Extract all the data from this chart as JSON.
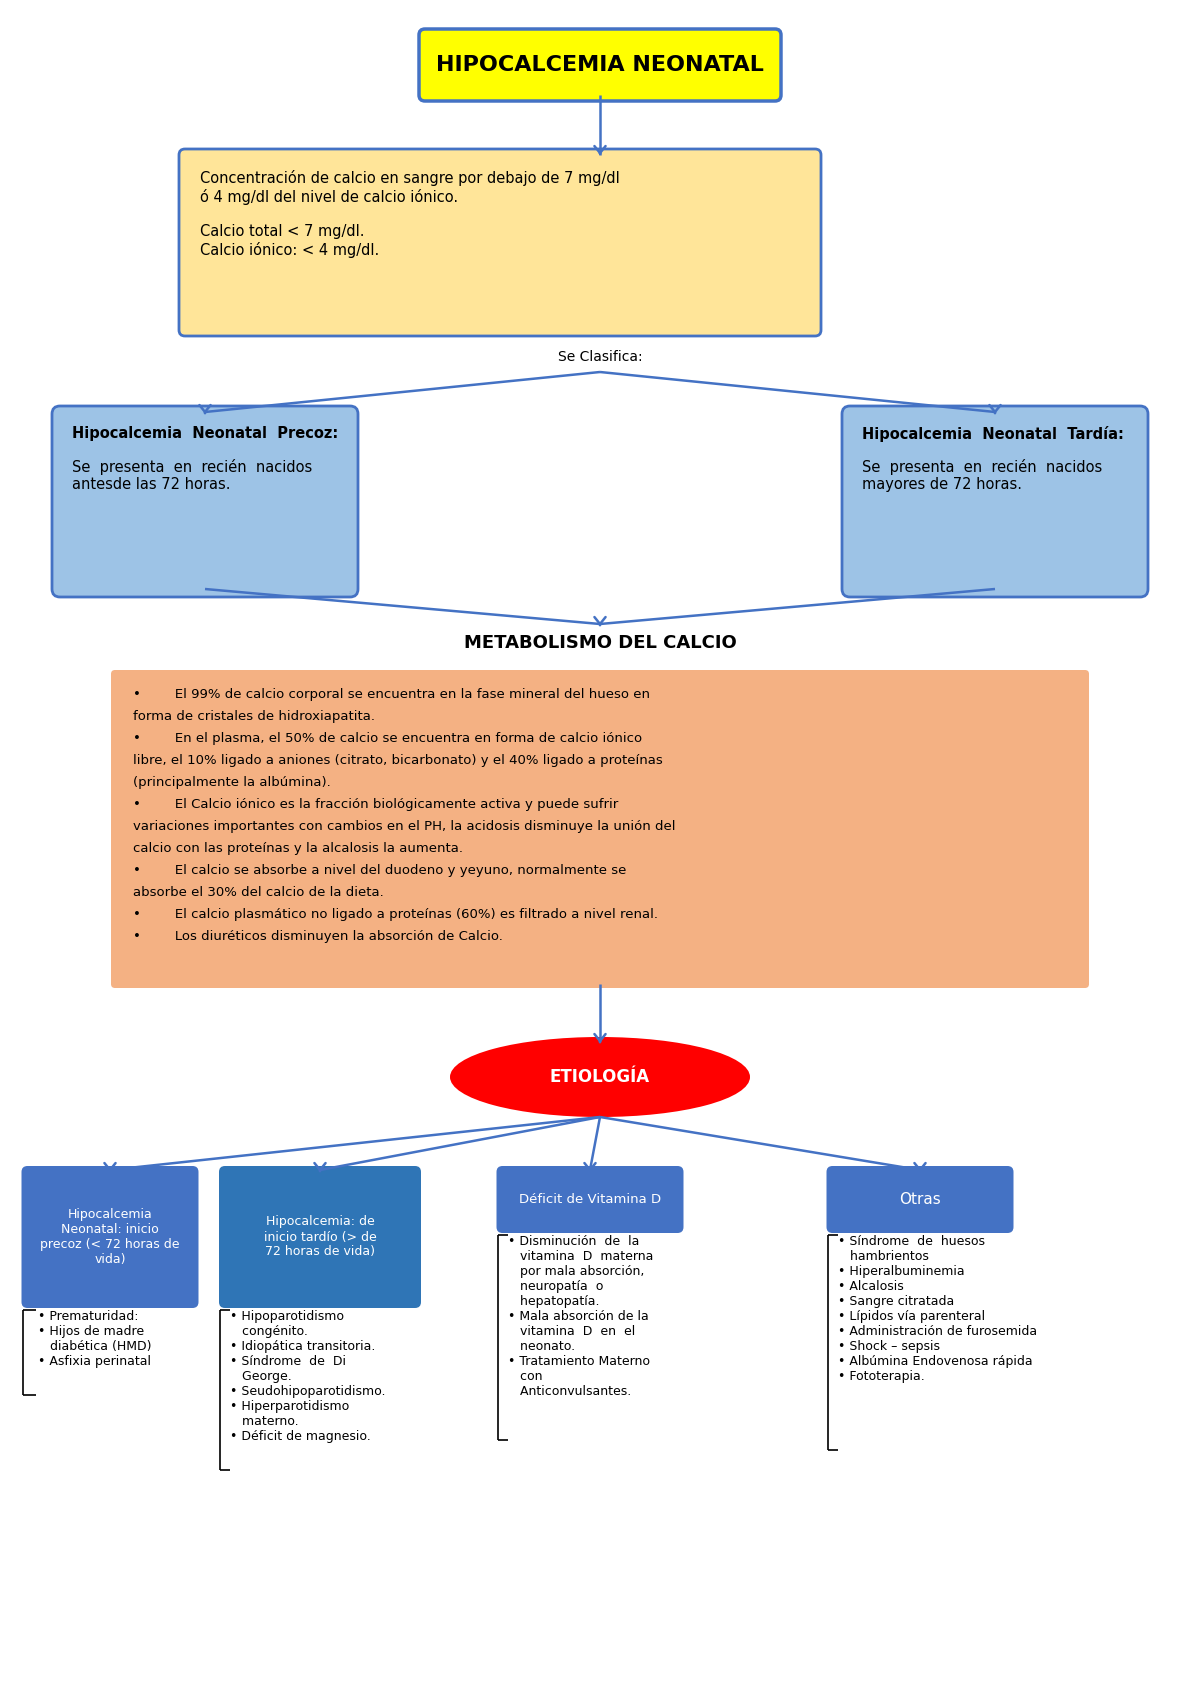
{
  "title": "HIPOCALCEMIA NEONATAL",
  "title_bg": "#FFFF00",
  "title_border": "#4472C4",
  "definition_text": "Concentración de calcio en sangre por debajo de 7 mg/dl\nó 4 mg/dl del nivel de calcio iónico.\n\nCalcio total < 7 mg/dl.\nCalcio iónico: < 4 mg/dl.",
  "definition_bg": "#FFE599",
  "definition_border": "#4472C4",
  "se_clasifica": "Se Clasifica:",
  "precoz_title": "Hipocalcemia  Neonatal  Precoz:",
  "precoz_text": "Se  presenta  en  recién  nacidos\nantesde las 72 horas.",
  "tardia_title": "Hipocalcemia  Neonatal  Tardía:",
  "tardia_text": "Se  presenta  en  recién  nacidos\nmayores de 72 horas.",
  "clasificacion_bg": "#9DC3E6",
  "clasificacion_border": "#4472C4",
  "metabolismo_title": "METABOLISMO DEL CALCIO",
  "metabolismo_lines": [
    "•        El 99% de calcio corporal se encuentra en la fase mineral del hueso en",
    "forma de cristales de hidroxiapatita.",
    "•        En el plasma, el 50% de calcio se encuentra en forma de calcio iónico",
    "libre, el 10% ligado a aniones (citrato, bicarbonato) y el 40% ligado a proteínas",
    "(principalmente la albúmina).",
    "•        El Calcio iónico es la fracción biológicamente activa y puede sufrir",
    "variaciones importantes con cambios en el PH, la acidosis disminuye la unión del",
    "calcio con las proteínas y la alcalosis la aumenta.",
    "•        El calcio se absorbe a nivel del duodeno y yeyuno, normalmente se",
    "absorbe el 30% del calcio de la dieta.",
    "•        El calcio plasmático no ligado a proteínas (60%) es filtrado a nivel renal.",
    "•        Los diuréticos disminuyen la absorción de Calcio."
  ],
  "metabolismo_bg": "#F4B183",
  "metabolismo_border": "#F4B183",
  "etiologia_text": "ETIOLOGÍA",
  "etiologia_bg": "#FF0000",
  "etiologia_text_color": "#FFFFFF",
  "arrow_color": "#4472C4",
  "box1_title": "Hipocalcemia\nNeonatal: inicio\nprecoz (< 72 horas de\nvida)",
  "box1_bg": "#4472C4",
  "box1_text_color": "#FFFFFF",
  "box1_items": "• Prematuridad:\n• Hijos de madre\n   diabética (HMD)\n• Asfixia perinatal",
  "box2_title": "Hipocalcemia: de\ninicio tardío (> de\n72 horas de vida)",
  "box2_bg": "#2F75B6",
  "box2_text_color": "#FFFFFF",
  "box2_items": "• Hipoparotidismo\n   congénito.\n• Idiopática transitoria.\n• Síndrome  de  Di\n   George.\n• Seudohipoparotidismo.\n• Hiperparotidismo\n   materno.\n• Déficit de magnesio.",
  "box3_title": "Déficit de Vitamina D",
  "box3_bg": "#4472C4",
  "box3_text_color": "#FFFFFF",
  "box3_items": "• Disminución  de  la\n   vitamina  D  materna\n   por mala absorción,\n   neuropatía  o\n   hepatopatía.\n• Mala absorción de la\n   vitamina  D  en  el\n   neonato.\n• Tratamiento Materno\n   con\n   Anticonvulsantes.",
  "box4_title": "Otras",
  "box4_bg": "#4472C4",
  "box4_text_color": "#FFFFFF",
  "box4_items": "• Síndrome  de  huesos\n   hambrientos\n• Hiperalbuminemia\n• Alcalosis\n• Sangre citratada\n• Lípidos vía parenteral\n• Administración de furosemida\n• Shock – sepsis\n• Albúmina Endovenosa rápida\n• Fototerapia.",
  "bg_color": "#FFFFFF",
  "line_color": "#4472C4"
}
